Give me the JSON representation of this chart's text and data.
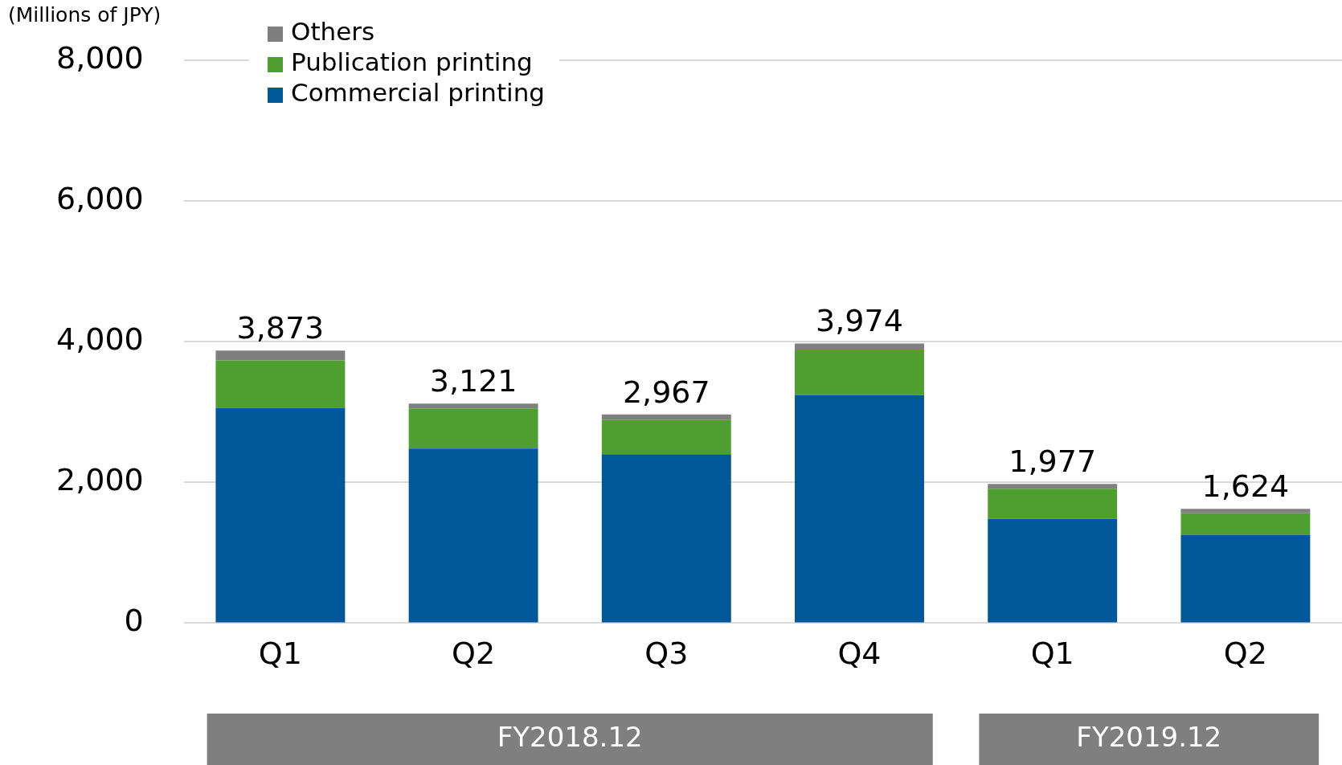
{
  "chart_data": {
    "type": "bar",
    "stacked": true,
    "ylabel": "(Millions of JPY)",
    "categories": [
      "Q1",
      "Q2",
      "Q3",
      "Q4",
      "Q1",
      "Q2"
    ],
    "series": [
      {
        "name": "Commercial printing",
        "color": "#00589b",
        "values": [
          3060,
          2480,
          2400,
          3240,
          1480,
          1250
        ]
      },
      {
        "name": "Publication printing",
        "color": "#4e9f2f",
        "values": [
          675,
          570,
          487,
          637,
          429,
          310
        ]
      },
      {
        "name": "Others",
        "color": "#7f7f7f",
        "values": [
          138,
          71,
          80,
          97,
          68,
          64
        ]
      }
    ],
    "totals": [
      "3,873",
      "3,121",
      "2,967",
      "3,974",
      "1,977",
      "1,624"
    ],
    "ylim": [
      0,
      8000
    ],
    "yticks": [
      {
        "value": 0,
        "label": "0"
      },
      {
        "value": 2000,
        "label": "2,000"
      },
      {
        "value": 4000,
        "label": "4,000"
      },
      {
        "value": 6000,
        "label": "6,000"
      },
      {
        "value": 8000,
        "label": "8,000"
      }
    ],
    "grid": "y",
    "legend": "top left",
    "annotations": [
      "FY2018.12",
      "FY2019.12"
    ]
  }
}
